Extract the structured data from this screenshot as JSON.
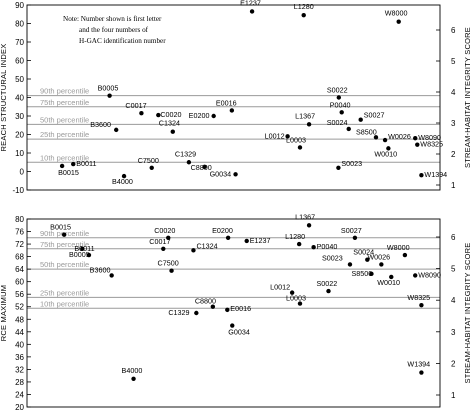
{
  "chart_data": [
    {
      "type": "scatter",
      "ylabel": "REACH STRUCTURAL INDEX",
      "y2label": "STREAM-HABITAT INTEGRITY SCORE",
      "ylim": [
        -10,
        90
      ],
      "yticks": [
        "-10",
        "0",
        "10",
        "20",
        "30",
        "40",
        "50",
        "60",
        "70",
        "80",
        "90"
      ],
      "y2ticks": [
        "1",
        "2",
        "3",
        "4",
        "5",
        "6"
      ],
      "note": [
        "Note: Number shown is first letter",
        "and the four numbers of",
        "H-GAC identification number"
      ],
      "percentiles": [
        {
          "label": "90th percentile",
          "value": 41
        },
        {
          "label": "75th percentile",
          "value": 35
        },
        {
          "label": "50th percentile",
          "value": 25.5
        },
        {
          "label": "25th percentile",
          "value": 17.5
        },
        {
          "label": "10th percentile",
          "value": 5
        }
      ],
      "points": [
        {
          "label": "E1237",
          "x": 0.545,
          "y": 86.5
        },
        {
          "label": "L1280",
          "x": 0.67,
          "y": 84.5
        },
        {
          "label": "W8000",
          "x": 0.9,
          "y": 81
        },
        {
          "label": "B0005",
          "x": 0.2,
          "y": 41
        },
        {
          "label": "S0022",
          "x": 0.755,
          "y": 40
        },
        {
          "label": "C0017",
          "x": 0.277,
          "y": 31.5
        },
        {
          "label": "C0020",
          "x": 0.318,
          "y": 30.5
        },
        {
          "label": "E0016",
          "x": 0.496,
          "y": 33
        },
        {
          "label": "E0200",
          "x": 0.452,
          "y": 30
        },
        {
          "label": "P0040",
          "x": 0.762,
          "y": 32
        },
        {
          "label": "B3600",
          "x": 0.216,
          "y": 22.5
        },
        {
          "label": "C1324",
          "x": 0.353,
          "y": 21.5
        },
        {
          "label": "L1367",
          "x": 0.683,
          "y": 25.5
        },
        {
          "label": "S0027",
          "x": 0.808,
          "y": 28
        },
        {
          "label": "S0024",
          "x": 0.779,
          "y": 23
        },
        {
          "label": "S8500",
          "x": 0.845,
          "y": 18.5
        },
        {
          "label": "L0012",
          "x": 0.631,
          "y": 19
        },
        {
          "label": "L0003",
          "x": 0.661,
          "y": 13
        },
        {
          "label": "W0026",
          "x": 0.867,
          "y": 17
        },
        {
          "label": "W8090",
          "x": 0.94,
          "y": 18
        },
        {
          "label": "W8325",
          "x": 0.945,
          "y": 14.5
        },
        {
          "label": "W0010",
          "x": 0.875,
          "y": 12.5
        },
        {
          "label": "B0011",
          "x": 0.112,
          "y": 4
        },
        {
          "label": "B0015",
          "x": 0.085,
          "y": 3
        },
        {
          "label": "C7500",
          "x": 0.302,
          "y": 2
        },
        {
          "label": "C1329",
          "x": 0.392,
          "y": 5
        },
        {
          "label": "C8800",
          "x": 0.43,
          "y": 2.5
        },
        {
          "label": "G0034",
          "x": 0.505,
          "y": -1.5
        },
        {
          "label": "B4000",
          "x": 0.235,
          "y": -2.5
        },
        {
          "label": "S0023",
          "x": 0.754,
          "y": 2
        },
        {
          "label": "W1394",
          "x": 0.955,
          "y": -2
        }
      ]
    },
    {
      "type": "scatter",
      "ylabel": "RCE MAXIMUM",
      "y2label": "STREAM-HABITAT INTEGRITY SCORE",
      "ylim": [
        20,
        80
      ],
      "yticks": [
        "20",
        "24",
        "28",
        "32",
        "36",
        "40",
        "44",
        "48",
        "52",
        "56",
        "60",
        "64",
        "68",
        "72",
        "76",
        "80"
      ],
      "y2ticks": [
        "1",
        "2",
        "3",
        "4",
        "5",
        "6"
      ],
      "percentiles": [
        {
          "label": "90th percentile",
          "value": 74
        },
        {
          "label": "75th percentile",
          "value": 70.5
        },
        {
          "label": "50th percentile",
          "value": 64
        },
        {
          "label": "25th percentile",
          "value": 55
        },
        {
          "label": "10th percentile",
          "value": 51.5
        }
      ],
      "points": [
        {
          "label": "L1367",
          "x": 0.683,
          "y": 78
        },
        {
          "label": "B0015",
          "x": 0.09,
          "y": 75
        },
        {
          "label": "C0020",
          "x": 0.342,
          "y": 74
        },
        {
          "label": "E0200",
          "x": 0.487,
          "y": 74
        },
        {
          "label": "S0027",
          "x": 0.794,
          "y": 74
        },
        {
          "label": "E1237",
          "x": 0.532,
          "y": 73
        },
        {
          "label": "L1280",
          "x": 0.659,
          "y": 72
        },
        {
          "label": "P0040",
          "x": 0.694,
          "y": 71
        },
        {
          "label": "C0017",
          "x": 0.33,
          "y": 70.5
        },
        {
          "label": "B0011",
          "x": 0.134,
          "y": 70.5
        },
        {
          "label": "C1324",
          "x": 0.403,
          "y": 70
        },
        {
          "label": "W8000",
          "x": 0.915,
          "y": 68.5
        },
        {
          "label": "B0005",
          "x": 0.15,
          "y": 68.5
        },
        {
          "label": "S0024",
          "x": 0.824,
          "y": 67
        },
        {
          "label": "W0026",
          "x": 0.858,
          "y": 65.5
        },
        {
          "label": "S0023",
          "x": 0.782,
          "y": 65.5
        },
        {
          "label": "C7500",
          "x": 0.35,
          "y": 63.5
        },
        {
          "label": "S8500",
          "x": 0.834,
          "y": 62.5
        },
        {
          "label": "B3600",
          "x": 0.205,
          "y": 62
        },
        {
          "label": "W0010",
          "x": 0.882,
          "y": 61.5
        },
        {
          "label": "W8090",
          "x": 0.94,
          "y": 62
        },
        {
          "label": "S0022",
          "x": 0.73,
          "y": 57
        },
        {
          "label": "L0012",
          "x": 0.642,
          "y": 56.5
        },
        {
          "label": "L0003",
          "x": 0.661,
          "y": 53
        },
        {
          "label": "W8325",
          "x": 0.955,
          "y": 52.5
        },
        {
          "label": "C8800",
          "x": 0.45,
          "y": 52
        },
        {
          "label": "E0016",
          "x": 0.485,
          "y": 51
        },
        {
          "label": "C1329",
          "x": 0.41,
          "y": 50
        },
        {
          "label": "G0034",
          "x": 0.497,
          "y": 46
        },
        {
          "label": "B4000",
          "x": 0.258,
          "y": 29
        },
        {
          "label": "W1394",
          "x": 0.955,
          "y": 31
        }
      ]
    }
  ]
}
